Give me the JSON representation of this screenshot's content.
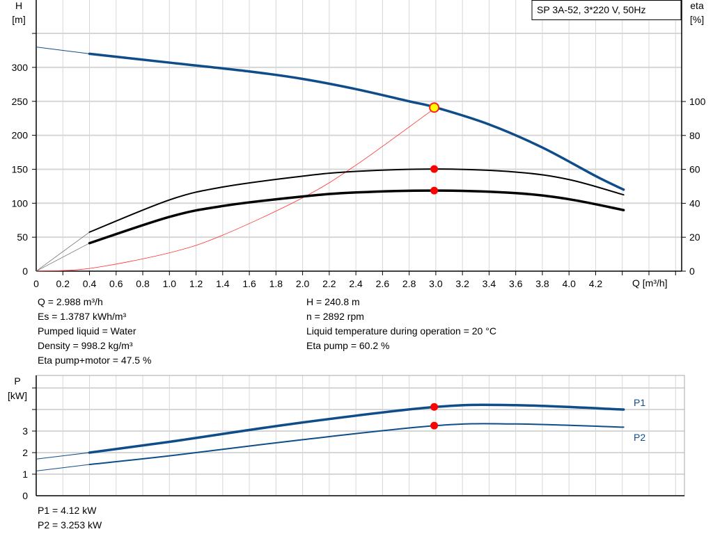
{
  "chart_data": [
    {
      "type": "line",
      "title": "SP 3A-52, 3*220 V, 50Hz",
      "xlabel": "Q [m³/h]",
      "ylabel_left": [
        "H",
        "[m]"
      ],
      "ylabel_right": [
        "eta",
        "[%]"
      ],
      "xlim": [
        0,
        4.8
      ],
      "ylim_left": [
        0,
        350
      ],
      "ylim_right": [
        0,
        143
      ],
      "x_ticks": [
        "0",
        "0.2",
        "0.4",
        "0.6",
        "0.8",
        "1.0",
        "1.2",
        "1.4",
        "1.6",
        "1.8",
        "2.0",
        "2.2",
        "2.4",
        "2.6",
        "2.8",
        "3.0",
        "3.2",
        "3.4",
        "3.6",
        "3.8",
        "4.0",
        "4.2"
      ],
      "y_ticks_left": [
        "0",
        "50",
        "100",
        "150",
        "200",
        "250",
        "300"
      ],
      "y_ticks_right": [
        "0",
        "20",
        "40",
        "60",
        "80",
        "100"
      ],
      "grid": true,
      "series": [
        {
          "axis": "left",
          "color": "#0e4c8a",
          "x": [
            0,
            0.4,
            1.0,
            1.6,
            2.0,
            2.4,
            2.8,
            3.0,
            3.4,
            3.8,
            4.2,
            4.41
          ],
          "values": [
            330,
            320,
            307,
            294,
            283,
            268,
            250,
            241,
            216,
            182,
            140,
            120
          ]
        },
        {
          "axis": "right",
          "color": "#000000",
          "x": [
            0,
            0.4,
            1.0,
            1.4,
            2.0,
            2.4,
            3.0,
            3.6,
            4.0,
            4.41
          ],
          "values": [
            0,
            23,
            42,
            49.6,
            56,
            58.8,
            60.2,
            58.4,
            54,
            45
          ]
        },
        {
          "axis": "right",
          "color": "#000000",
          "x": [
            0,
            0.4,
            1.0,
            1.4,
            2.0,
            2.4,
            3.0,
            3.6,
            4.0,
            4.41
          ],
          "values": [
            0,
            16.5,
            32,
            38.4,
            44,
            46.4,
            47.5,
            46,
            42.4,
            36
          ]
        },
        {
          "axis": "left",
          "color": "#ff3030",
          "x": [
            0,
            0.4,
            1.0,
            1.4,
            2.0,
            2.4,
            3.0
          ],
          "values": [
            0,
            4,
            27,
            53,
            108,
            156,
            241
          ]
        }
      ],
      "operating_points": [
        {
          "axis": "left",
          "x": 2.988,
          "value": 240.8,
          "color": "#ffff00"
        },
        {
          "axis": "right",
          "x": 2.988,
          "value": 60.2,
          "color": "#ff0000"
        },
        {
          "axis": "right",
          "x": 2.988,
          "value": 47.5,
          "color": "#ff0000"
        }
      ]
    },
    {
      "type": "line",
      "ylabel": [
        "P",
        "[kW]"
      ],
      "xlim": [
        0,
        4.8
      ],
      "ylim": [
        0,
        5.5
      ],
      "y_ticks": [
        "0",
        "1",
        "2",
        "3"
      ],
      "grid": true,
      "series": [
        {
          "name": "P1",
          "color": "#0e4c8a",
          "x": [
            0,
            0.4,
            1.0,
            2.0,
            3.0,
            3.6,
            4.41
          ],
          "values": [
            1.7,
            2.0,
            2.5,
            3.4,
            4.12,
            4.2,
            4.0
          ]
        },
        {
          "name": "P2",
          "color": "#0e4c8a",
          "x": [
            0,
            0.4,
            1.0,
            2.0,
            3.0,
            3.6,
            4.41
          ],
          "values": [
            1.15,
            1.45,
            1.85,
            2.6,
            3.253,
            3.33,
            3.18
          ]
        }
      ],
      "operating_points": [
        {
          "x": 2.988,
          "value": 4.12,
          "color": "#ff0000"
        },
        {
          "x": 2.988,
          "value": 3.253,
          "color": "#ff0000"
        }
      ]
    }
  ],
  "info": {
    "left": [
      "Q = 2.988 m³/h",
      "Es = 1.3787 kWh/m³",
      "Pumped liquid = Water",
      "Density = 998.2 kg/m³",
      "Eta pump+motor = 47.5 %"
    ],
    "right": [
      "H = 240.8 m",
      "n = 2892 rpm",
      "Liquid temperature during operation = 20 °C",
      "Eta pump = 60.2 %"
    ],
    "power": [
      "P1 = 4.12 kW",
      "P2 = 3.253 kW"
    ]
  }
}
